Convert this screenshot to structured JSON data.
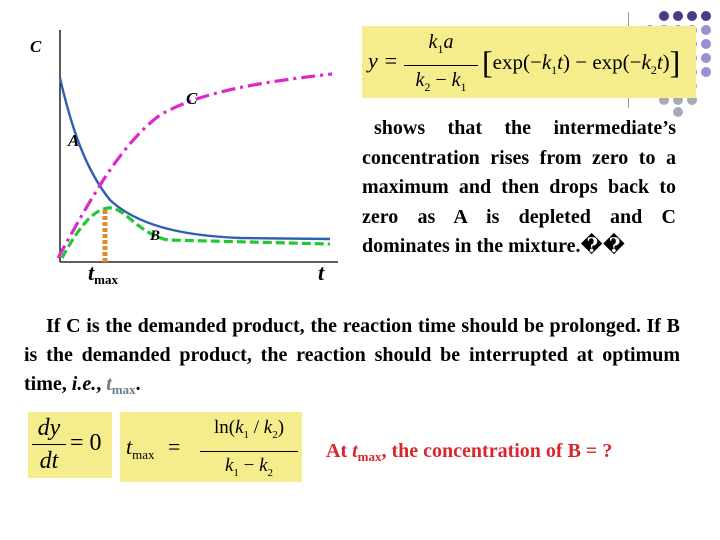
{
  "diagram": {
    "label_C_axis": "C",
    "label_C_curve": "C",
    "label_A": "A",
    "label_B": "B",
    "label_tmax_base": "t",
    "label_tmax_sub": "max",
    "label_t": "t",
    "colors": {
      "A": "#2f5fb0",
      "B": "#22c832",
      "C": "#dc28c8",
      "tmax_marker": "#e08a2a",
      "formula_bg": "#f5ec8c"
    }
  },
  "formula_main": {
    "lhs": "y =",
    "numerator_k": "k",
    "numerator_k_sub": "1",
    "numerator_a": "a",
    "denominator_k2": "k",
    "denominator_k2_sub": "2",
    "minus": " − ",
    "denominator_k1": "k",
    "denominator_k1_sub": "1",
    "bracket_body_1": "exp(−",
    "bracket_k1": "k",
    "bracket_k1_sub": "1",
    "bracket_t1": "t",
    "bracket_body_2": ") − exp(−",
    "bracket_k2": "k",
    "bracket_k2_sub": "2",
    "bracket_t2": "t",
    "bracket_body_3": ")"
  },
  "side_text": "shows that the intermediate’s concentration rises from zero to a maximum and then drops back to zero as A is depleted and C dominates in the mixture.��",
  "para": {
    "line1": "If C is the demanded product, the reaction time should be prolonged. If B is the demanded product, the reaction should be interrupted at optimum time,",
    "ie": "i.e.",
    "comma": ",",
    "tmax_base": "t",
    "tmax_sub": "max",
    "end": "."
  },
  "formula_dydt": {
    "dy": "dy",
    "dt": "dt",
    "rhs": "= 0"
  },
  "formula_tmax": {
    "t": "t",
    "t_sub": "max",
    "eq": "=",
    "num_ln": "ln(",
    "num_k1": "k",
    "num_k1_sub": "1",
    "num_slash": " / ",
    "num_k2": "k",
    "num_k2_sub": "2",
    "num_close": ")",
    "den_k1": "k",
    "den_k1_sub": "1",
    "den_minus": " − ",
    "den_k2": "k",
    "den_k2_sub": "2"
  },
  "question": {
    "at": "At ",
    "t": "t",
    "t_sub": "max",
    "rest": ", the concentration of B = ?"
  }
}
